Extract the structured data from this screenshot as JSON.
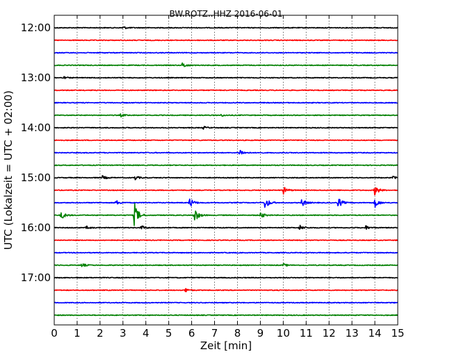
{
  "chart_data": {
    "type": "line",
    "title": "BW.ROTZ..HHZ 2016-06-01",
    "xlabel": "Zeit  [min]",
    "ylabel": "UTC (Lokalzeit = UTC + 02:00)",
    "xlim": [
      0,
      15
    ],
    "x_ticks": [
      "0",
      "1",
      "2",
      "3",
      "4",
      "5",
      "6",
      "7",
      "8",
      "9",
      "10",
      "11",
      "12",
      "13",
      "14",
      "15"
    ],
    "y_ticks": [
      "12:00",
      "13:00",
      "14:00",
      "15:00",
      "16:00",
      "17:00"
    ],
    "grid": "vertical dotted",
    "trace_colors": [
      "#000000",
      "#ff0000",
      "#0000ff",
      "#008000"
    ],
    "traces": [
      {
        "start": "12:00",
        "events": [
          {
            "t": 3.0,
            "amp": 0.15
          }
        ]
      },
      {
        "start": "12:15",
        "events": []
      },
      {
        "start": "12:30",
        "events": []
      },
      {
        "start": "12:45",
        "events": [
          {
            "t": 5.6,
            "amp": 0.3
          }
        ]
      },
      {
        "start": "13:00",
        "events": [
          {
            "t": 0.4,
            "amp": 0.1
          }
        ]
      },
      {
        "start": "13:15",
        "events": []
      },
      {
        "start": "13:30",
        "events": []
      },
      {
        "start": "13:45",
        "events": [
          {
            "t": 2.9,
            "amp": 0.15
          },
          {
            "t": 7.3,
            "amp": 0.1
          }
        ]
      },
      {
        "start": "14:00",
        "events": [
          {
            "t": 6.5,
            "amp": 0.15
          }
        ]
      },
      {
        "start": "14:15",
        "events": []
      },
      {
        "start": "14:30",
        "events": [
          {
            "t": 8.1,
            "amp": 0.35
          }
        ]
      },
      {
        "start": "14:45",
        "events": []
      },
      {
        "start": "15:00",
        "events": [
          {
            "t": 2.1,
            "amp": 0.2
          },
          {
            "t": 3.5,
            "amp": 0.25
          },
          {
            "t": 14.8,
            "amp": 0.15
          }
        ]
      },
      {
        "start": "15:15",
        "events": [
          {
            "t": 10.0,
            "amp": 0.4
          },
          {
            "t": 14.0,
            "amp": 0.55
          }
        ]
      },
      {
        "start": "15:30",
        "events": [
          {
            "t": 2.7,
            "amp": 0.25
          },
          {
            "t": 5.9,
            "amp": 0.55
          },
          {
            "t": 9.2,
            "amp": 0.7
          },
          {
            "t": 10.8,
            "amp": 0.45
          },
          {
            "t": 12.4,
            "amp": 0.55
          },
          {
            "t": 14.0,
            "amp": 0.5
          }
        ]
      },
      {
        "start": "15:45",
        "events": [
          {
            "t": 0.3,
            "amp": 0.45
          },
          {
            "t": 3.5,
            "amp": 1.3
          },
          {
            "t": 6.1,
            "amp": 0.9
          },
          {
            "t": 9.0,
            "amp": 0.35
          }
        ]
      },
      {
        "start": "16:00",
        "events": [
          {
            "t": 1.4,
            "amp": 0.15
          },
          {
            "t": 3.8,
            "amp": 0.25
          },
          {
            "t": 10.7,
            "amp": 0.3
          },
          {
            "t": 13.6,
            "amp": 0.2
          }
        ]
      },
      {
        "start": "16:15",
        "events": []
      },
      {
        "start": "16:30",
        "events": []
      },
      {
        "start": "16:45",
        "events": [
          {
            "t": 1.2,
            "amp": 0.2
          },
          {
            "t": 10.0,
            "amp": 0.15
          }
        ]
      },
      {
        "start": "17:00",
        "events": []
      },
      {
        "start": "17:15",
        "events": [
          {
            "t": 5.7,
            "amp": 0.25
          }
        ]
      },
      {
        "start": "17:30",
        "events": []
      },
      {
        "start": "17:45",
        "events": []
      }
    ]
  }
}
